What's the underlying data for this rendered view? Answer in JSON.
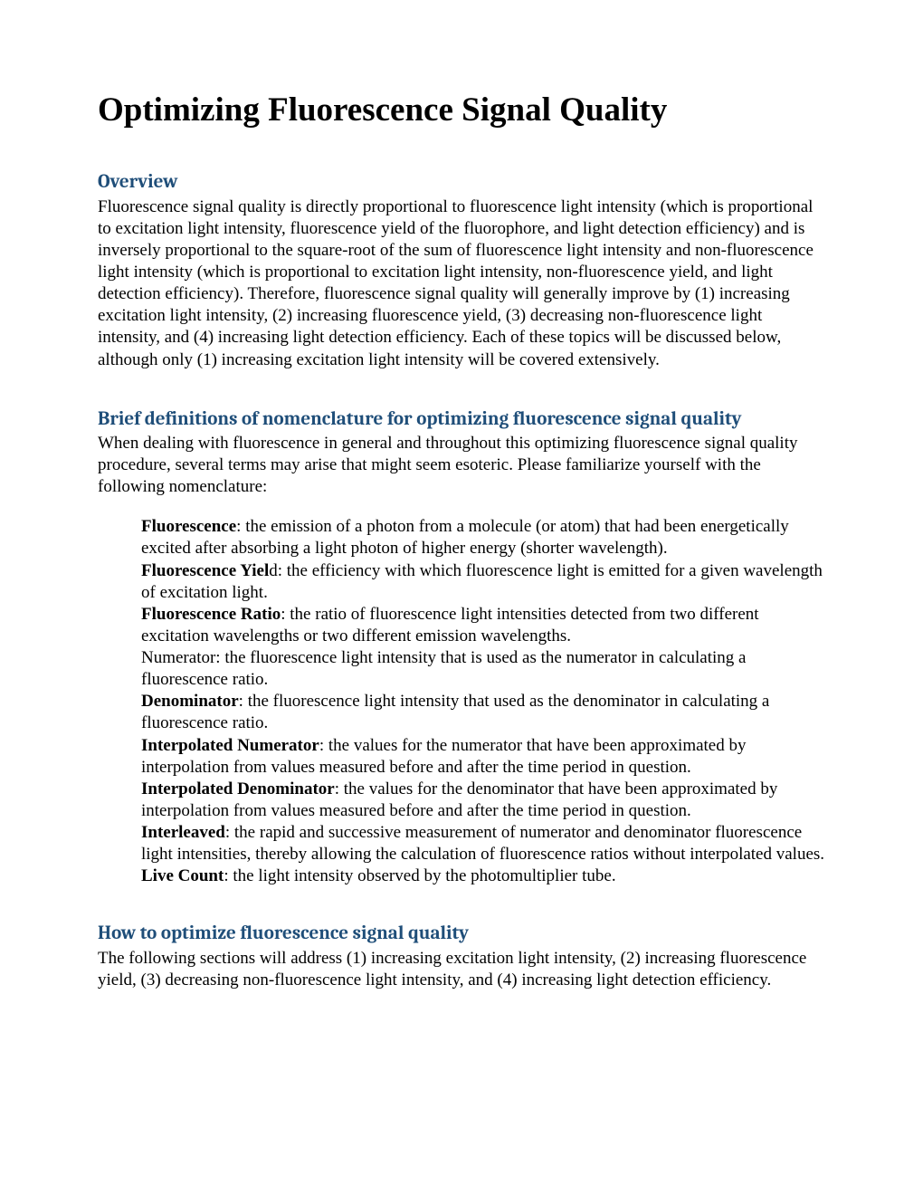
{
  "title": "Optimizing Fluorescence Signal Quality",
  "sections": {
    "overview": {
      "heading": "Overview",
      "body": "Fluorescence signal quality is directly proportional to fluorescence light intensity (which is proportional to excitation light intensity, fluorescence yield of the fluorophore, and light detection efficiency) and is inversely proportional to the square-root of the sum of fluorescence light intensity and non-fluorescence light intensity (which is proportional to excitation light intensity, non-fluorescence yield, and light detection efficiency). Therefore, fluorescence signal quality will generally improve by (1) increasing excitation light intensity, (2) increasing fluorescence yield, (3) decreasing non-fluorescence light intensity, and (4) increasing light detection efficiency. Each of these topics will be discussed below, although only (1) increasing excitation light intensity will be covered extensively."
    },
    "defs": {
      "heading": "Brief definitions of nomenclature for optimizing fluorescence signal quality",
      "intro": "When dealing with fluorescence in general and throughout this optimizing fluorescence signal quality procedure, several terms may arise that might seem esoteric.  Please familiarize yourself with the following nomenclature:",
      "items": [
        {
          "term": "Fluorescence",
          "punct": ": ",
          "desc": "the emission of a photon from a molecule (or atom) that had been energetically excited after absorbing a light photon of higher energy (shorter wavelength)."
        },
        {
          "term": "Fluorescence Yiel",
          "tail": "d",
          "punct": ": ",
          "desc": "the efficiency with which fluorescence light is emitted for a given wavelength of excitation light."
        },
        {
          "term": "Fluorescence Ratio",
          "punct": ": ",
          "desc": "the ratio of fluorescence light intensities detected from two different excitation wavelengths or two different emission wavelengths."
        },
        {
          "term": "",
          "prefix": "Numerator: ",
          "desc": "the fluorescence light intensity that is used as the numerator in calculating a fluorescence ratio."
        },
        {
          "term": "Denominator",
          "punct": ": ",
          "desc": "the fluorescence light intensity that used as the denominator in calculating a fluorescence ratio."
        },
        {
          "term": "Interpolated Numerator",
          "punct": ": ",
          "desc": "the values for the numerator that have been approximated by interpolation from values measured before and after the time period in question."
        },
        {
          "term": "Interpolated Denominator",
          "punct": ": ",
          "desc": "the values for the denominator that have been approximated by interpolation from values measured before and after the time period in question."
        },
        {
          "term": "Interleaved",
          "punct": ": ",
          "desc": "the rapid and successive measurement of numerator and denominator fluorescence light intensities, thereby allowing the calculation of fluorescence ratios without interpolated values."
        },
        {
          "term": "Live Count",
          "punct": ": ",
          "desc": "the light intensity observed by the photomultiplier tube."
        }
      ]
    },
    "howto": {
      "heading": "How to optimize fluorescence signal quality",
      "body": "The following sections will address (1) increasing excitation light intensity, (2) increasing fluorescence yield, (3) decreasing non-fluorescence light intensity, and (4) increasing light detection efficiency."
    }
  },
  "colors": {
    "heading": "#1f4e79",
    "text": "#000000",
    "background": "#ffffff"
  },
  "fonts": {
    "body": "Times New Roman",
    "heading": "Cambria",
    "title_size": 37,
    "heading_size": 21,
    "body_size": 19
  }
}
